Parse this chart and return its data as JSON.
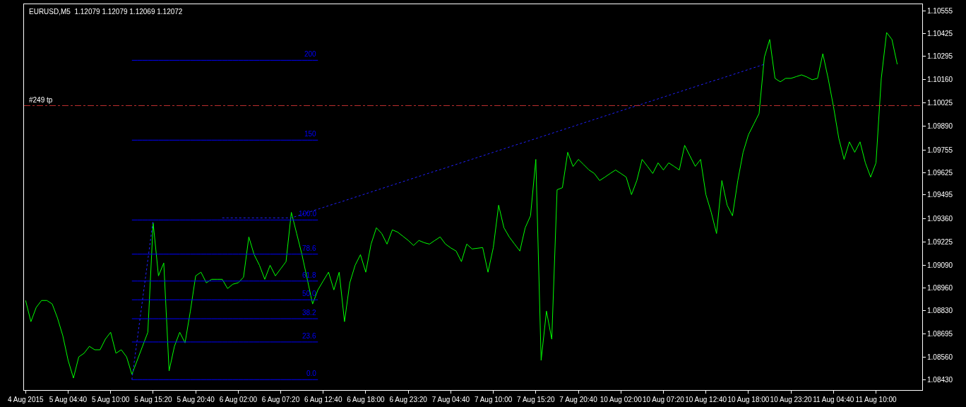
{
  "chart_data": {
    "type": "line",
    "title": "EURUSD,M5  1.12079 1.12079 1.12069 1.12072",
    "categories": [
      "4 Aug 2015",
      null,
      null,
      null,
      null,
      null,
      null,
      null,
      "5 Aug 04:40",
      null,
      null,
      null,
      null,
      null,
      null,
      null,
      "5 Aug 10:00",
      null,
      null,
      null,
      null,
      null,
      null,
      null,
      "5 Aug 15:20",
      null,
      null,
      null,
      null,
      null,
      null,
      null,
      "5 Aug 20:40",
      null,
      null,
      null,
      null,
      null,
      null,
      null,
      "6 Aug 02:00",
      null,
      null,
      null,
      null,
      null,
      null,
      null,
      "6 Aug 07:20",
      null,
      null,
      null,
      null,
      null,
      null,
      null,
      "6 Aug 12:40",
      null,
      null,
      null,
      null,
      null,
      null,
      null,
      "6 Aug 18:00",
      null,
      null,
      null,
      null,
      null,
      null,
      null,
      "6 Aug 23:20",
      null,
      null,
      null,
      null,
      null,
      null,
      null,
      "7 Aug 04:40",
      null,
      null,
      null,
      null,
      null,
      null,
      null,
      "7 Aug 10:00",
      null,
      null,
      null,
      null,
      null,
      null,
      null,
      "7 Aug 15:20",
      null,
      null,
      null,
      null,
      null,
      null,
      null,
      "7 Aug 20:40",
      null,
      null,
      null,
      null,
      null,
      null,
      null,
      "10 Aug 02:00",
      null,
      null,
      null,
      null,
      null,
      null,
      null,
      "10 Aug 07:20",
      null,
      null,
      null,
      null,
      null,
      null,
      null,
      "10 Aug 12:40",
      null,
      null,
      null,
      null,
      null,
      null,
      null,
      "10 Aug 18:00",
      null,
      null,
      null,
      null,
      null,
      null,
      null,
      "10 Aug 23:20",
      null,
      null,
      null,
      null,
      null,
      null,
      null,
      "11 Aug 04:40",
      null,
      null,
      null,
      null,
      null,
      null,
      null,
      "11 Aug 10:00",
      null,
      null,
      null,
      null
    ],
    "ylim": [
      1.08371,
      1.10594
    ],
    "yticks": [
      1.10555,
      1.10425,
      1.10295,
      {
        "value": 1.1016,
        "label": "1.10160"
      },
      1.10025,
      {
        "value": 1.0989,
        "label": "1.09890"
      },
      1.09755,
      1.09625,
      1.09495,
      {
        "value": 1.0936,
        "label": "1.09360"
      },
      1.09225,
      {
        "value": 1.0909,
        "label": "1.09090"
      },
      {
        "value": 1.0896,
        "label": "1.08960"
      },
      {
        "value": 1.0883,
        "label": "1.08830"
      },
      1.08695,
      {
        "value": 1.0856,
        "label": "1.08560"
      },
      {
        "value": 1.0843,
        "label": "1.08430"
      }
    ],
    "grid": false,
    "legend": false,
    "marker": "none",
    "ref_lines": [
      {
        "axis": "y",
        "value": 1.1001,
        "label": "#249 tp",
        "color": "#c03030",
        "line_style": "dashed"
      }
    ],
    "series": [
      {
        "color": "#00ff00",
        "line_style": "solid",
        "values": [
          1.08887,
          1.08765,
          1.08847,
          1.08887,
          1.08887,
          1.08867,
          1.08786,
          1.08684,
          1.08542,
          1.0844,
          1.08562,
          1.08583,
          1.08623,
          1.08603,
          1.08603,
          1.08664,
          1.08704,
          1.08583,
          1.08603,
          1.08562,
          1.08461,
          1.08542,
          1.08623,
          1.08704,
          1.09334,
          1.09029,
          1.09103,
          1.08481,
          1.08623,
          1.08704,
          1.08643,
          1.08826,
          1.09029,
          1.0905,
          1.08989,
          1.09009,
          1.09009,
          1.09009,
          1.08956,
          1.08981,
          1.08989,
          1.09021,
          1.09253,
          1.09151,
          1.0909,
          1.09009,
          1.0909,
          1.09029,
          1.0907,
          1.09111,
          1.09395,
          1.09273,
          1.09151,
          1.09009,
          1.08867,
          1.08948,
          1.09,
          1.0905,
          1.08948,
          1.0905,
          1.08765,
          1.08989,
          1.0909,
          1.09151,
          1.0905,
          1.09212,
          1.09306,
          1.09273,
          1.09212,
          1.09294,
          1.09281,
          1.09257,
          1.09233,
          1.09204,
          1.09233,
          1.0922,
          1.09212,
          1.09233,
          1.09253,
          1.09212,
          1.0919,
          1.09172,
          1.09111,
          1.09212,
          1.09184,
          1.09188,
          1.09192,
          1.0905,
          1.09192,
          1.09436,
          1.09306,
          1.09253,
          1.09212,
          1.09172,
          1.09306,
          1.09375,
          1.097,
          1.08542,
          1.08826,
          1.08664,
          1.09525,
          1.09537,
          1.09741,
          1.09659,
          1.097,
          1.0967,
          1.09639,
          1.09619,
          1.09578,
          1.09598,
          1.09619,
          1.09639,
          1.09619,
          1.09598,
          1.09497,
          1.09578,
          1.097,
          1.0966,
          1.09619,
          1.0968,
          1.09639,
          1.0968,
          1.0966,
          1.09639,
          1.09781,
          1.0972,
          1.0966,
          1.097,
          1.09497,
          1.09395,
          1.09273,
          1.09578,
          1.09436,
          1.09375,
          1.09578,
          1.09741,
          1.09842,
          1.09903,
          1.09964,
          1.10289,
          1.10391,
          1.10167,
          1.10147,
          1.10167,
          1.10167,
          1.10177,
          1.10187,
          1.10175,
          1.10159,
          1.10167,
          1.10309,
          1.10167,
          1.10005,
          1.09822,
          1.097,
          1.09801,
          1.09741,
          1.09801,
          1.0968,
          1.09598,
          1.0968,
          1.10167,
          1.10431,
          1.10391,
          1.10248
        ]
      },
      {
        "name": "0.0",
        "color": "#0000ff",
        "values": [
          null,
          null,
          null,
          null,
          null,
          null,
          null,
          null,
          null,
          null,
          null,
          null,
          null,
          null,
          null,
          null,
          null,
          null,
          null,
          null,
          1.08431,
          1.08431,
          1.08431,
          1.08431,
          1.08431,
          1.08431,
          1.08431,
          1.08431,
          1.08431,
          1.08431,
          1.08431,
          1.08431,
          1.08431,
          1.08431,
          1.08431,
          1.08431,
          1.08431,
          1.08431,
          1.08431,
          1.08431,
          1.08431,
          1.08431,
          1.08431,
          1.08431,
          1.08431,
          1.08431,
          1.08431,
          1.08431,
          1.08431,
          1.08431,
          1.08431,
          1.08431,
          1.08431,
          1.08431,
          1.08431,
          1.08431,
          null,
          null,
          null,
          null,
          null,
          null,
          null,
          null,
          null,
          null,
          null,
          null,
          null,
          null,
          null,
          null,
          null,
          null,
          null,
          null,
          null,
          null,
          null,
          null,
          null,
          null,
          null,
          null,
          null,
          null,
          null,
          null,
          null,
          null,
          null,
          null,
          null,
          null,
          null,
          null,
          null,
          null,
          null,
          null,
          null,
          null,
          null,
          null,
          null,
          null,
          null,
          null,
          null,
          null,
          null,
          null,
          null,
          null,
          null,
          null,
          null,
          null,
          null,
          null,
          null,
          null,
          null,
          null,
          null,
          null,
          null,
          null,
          null,
          null,
          null,
          null,
          null,
          null,
          null,
          null,
          null,
          null,
          null,
          null,
          null,
          null,
          null,
          null,
          null,
          null,
          null,
          null,
          null,
          null,
          null,
          null,
          null,
          null,
          null,
          null,
          null,
          null,
          null,
          null,
          null,
          null,
          null,
          null,
          null
        ]
      },
      {
        "name": "23.6",
        "color": "#0000ff",
        "values": [
          null,
          null,
          null,
          null,
          null,
          null,
          null,
          null,
          null,
          null,
          null,
          null,
          null,
          null,
          null,
          null,
          null,
          null,
          null,
          null,
          1.08648,
          1.08648,
          1.08648,
          1.08648,
          1.08648,
          1.08648,
          1.08648,
          1.08648,
          1.08648,
          1.08648,
          1.08648,
          1.08648,
          1.08648,
          1.08648,
          1.08648,
          1.08648,
          1.08648,
          1.08648,
          1.08648,
          1.08648,
          1.08648,
          1.08648,
          1.08648,
          1.08648,
          1.08648,
          1.08648,
          1.08648,
          1.08648,
          1.08648,
          1.08648,
          1.08648,
          1.08648,
          1.08648,
          1.08648,
          1.08648,
          1.08648,
          null,
          null,
          null,
          null,
          null,
          null,
          null,
          null,
          null,
          null,
          null,
          null,
          null,
          null,
          null,
          null,
          null,
          null,
          null,
          null,
          null,
          null,
          null,
          null,
          null,
          null,
          null,
          null,
          null,
          null,
          null,
          null,
          null,
          null,
          null,
          null,
          null,
          null,
          null,
          null,
          null,
          null,
          null,
          null,
          null,
          null,
          null,
          null,
          null,
          null,
          null,
          null,
          null,
          null,
          null,
          null,
          null,
          null,
          null,
          null,
          null,
          null,
          null,
          null,
          null,
          null,
          null,
          null,
          null,
          null,
          null,
          null,
          null,
          null,
          null,
          null,
          null,
          null,
          null,
          null,
          null,
          null,
          null,
          null,
          null,
          null,
          null,
          null,
          null,
          null,
          null,
          null,
          null,
          null,
          null,
          null,
          null,
          null,
          null,
          null,
          null,
          null,
          null,
          null,
          null,
          null,
          null,
          null,
          null
        ]
      },
      {
        "name": "38.2",
        "color": "#0000ff",
        "values": [
          null,
          null,
          null,
          null,
          null,
          null,
          null,
          null,
          null,
          null,
          null,
          null,
          null,
          null,
          null,
          null,
          null,
          null,
          null,
          null,
          1.08782,
          1.08782,
          1.08782,
          1.08782,
          1.08782,
          1.08782,
          1.08782,
          1.08782,
          1.08782,
          1.08782,
          1.08782,
          1.08782,
          1.08782,
          1.08782,
          1.08782,
          1.08782,
          1.08782,
          1.08782,
          1.08782,
          1.08782,
          1.08782,
          1.08782,
          1.08782,
          1.08782,
          1.08782,
          1.08782,
          1.08782,
          1.08782,
          1.08782,
          1.08782,
          1.08782,
          1.08782,
          1.08782,
          1.08782,
          1.08782,
          1.08782,
          null,
          null,
          null,
          null,
          null,
          null,
          null,
          null,
          null,
          null,
          null,
          null,
          null,
          null,
          null,
          null,
          null,
          null,
          null,
          null,
          null,
          null,
          null,
          null,
          null,
          null,
          null,
          null,
          null,
          null,
          null,
          null,
          null,
          null,
          null,
          null,
          null,
          null,
          null,
          null,
          null,
          null,
          null,
          null,
          null,
          null,
          null,
          null,
          null,
          null,
          null,
          null,
          null,
          null,
          null,
          null,
          null,
          null,
          null,
          null,
          null,
          null,
          null,
          null,
          null,
          null,
          null,
          null,
          null,
          null,
          null,
          null,
          null,
          null,
          null,
          null,
          null,
          null,
          null,
          null,
          null,
          null,
          null,
          null,
          null,
          null,
          null,
          null,
          null,
          null,
          null,
          null,
          null,
          null,
          null,
          null,
          null,
          null,
          null,
          null,
          null,
          null,
          null,
          null,
          null,
          null,
          null,
          null,
          null
        ]
      },
      {
        "name": "50.0",
        "color": "#0000ff",
        "values": [
          null,
          null,
          null,
          null,
          null,
          null,
          null,
          null,
          null,
          null,
          null,
          null,
          null,
          null,
          null,
          null,
          null,
          null,
          null,
          null,
          1.08891,
          1.08891,
          1.08891,
          1.08891,
          1.08891,
          1.08891,
          1.08891,
          1.08891,
          1.08891,
          1.08891,
          1.08891,
          1.08891,
          1.08891,
          1.08891,
          1.08891,
          1.08891,
          1.08891,
          1.08891,
          1.08891,
          1.08891,
          1.08891,
          1.08891,
          1.08891,
          1.08891,
          1.08891,
          1.08891,
          1.08891,
          1.08891,
          1.08891,
          1.08891,
          1.08891,
          1.08891,
          1.08891,
          1.08891,
          1.08891,
          1.08891,
          null,
          null,
          null,
          null,
          null,
          null,
          null,
          null,
          null,
          null,
          null,
          null,
          null,
          null,
          null,
          null,
          null,
          null,
          null,
          null,
          null,
          null,
          null,
          null,
          null,
          null,
          null,
          null,
          null,
          null,
          null,
          null,
          null,
          null,
          null,
          null,
          null,
          null,
          null,
          null,
          null,
          null,
          null,
          null,
          null,
          null,
          null,
          null,
          null,
          null,
          null,
          null,
          null,
          null,
          null,
          null,
          null,
          null,
          null,
          null,
          null,
          null,
          null,
          null,
          null,
          null,
          null,
          null,
          null,
          null,
          null,
          null,
          null,
          null,
          null,
          null,
          null,
          null,
          null,
          null,
          null,
          null,
          null,
          null,
          null,
          null,
          null,
          null,
          null,
          null,
          null,
          null,
          null,
          null,
          null,
          null,
          null,
          null,
          null,
          null,
          null,
          null,
          null,
          null,
          null,
          null,
          null,
          null,
          null
        ]
      },
      {
        "name": "61.8",
        "color": "#0000ff",
        "values": [
          null,
          null,
          null,
          null,
          null,
          null,
          null,
          null,
          null,
          null,
          null,
          null,
          null,
          null,
          null,
          null,
          null,
          null,
          null,
          null,
          1.08999,
          1.08999,
          1.08999,
          1.08999,
          1.08999,
          1.08999,
          1.08999,
          1.08999,
          1.08999,
          1.08999,
          1.08999,
          1.08999,
          1.08999,
          1.08999,
          1.08999,
          1.08999,
          1.08999,
          1.08999,
          1.08999,
          1.08999,
          1.08999,
          1.08999,
          1.08999,
          1.08999,
          1.08999,
          1.08999,
          1.08999,
          1.08999,
          1.08999,
          1.08999,
          1.08999,
          1.08999,
          1.08999,
          1.08999,
          1.08999,
          1.08999,
          null,
          null,
          null,
          null,
          null,
          null,
          null,
          null,
          null,
          null,
          null,
          null,
          null,
          null,
          null,
          null,
          null,
          null,
          null,
          null,
          null,
          null,
          null,
          null,
          null,
          null,
          null,
          null,
          null,
          null,
          null,
          null,
          null,
          null,
          null,
          null,
          null,
          null,
          null,
          null,
          null,
          null,
          null,
          null,
          null,
          null,
          null,
          null,
          null,
          null,
          null,
          null,
          null,
          null,
          null,
          null,
          null,
          null,
          null,
          null,
          null,
          null,
          null,
          null,
          null,
          null,
          null,
          null,
          null,
          null,
          null,
          null,
          null,
          null,
          null,
          null,
          null,
          null,
          null,
          null,
          null,
          null,
          null,
          null,
          null,
          null,
          null,
          null,
          null,
          null,
          null,
          null,
          null,
          null,
          null,
          null,
          null,
          null,
          null,
          null,
          null,
          null,
          null,
          null,
          null,
          null,
          null,
          null,
          null
        ]
      },
      {
        "name": "78.6",
        "color": "#0000ff",
        "values": [
          null,
          null,
          null,
          null,
          null,
          null,
          null,
          null,
          null,
          null,
          null,
          null,
          null,
          null,
          null,
          null,
          null,
          null,
          null,
          null,
          1.09154,
          1.09154,
          1.09154,
          1.09154,
          1.09154,
          1.09154,
          1.09154,
          1.09154,
          1.09154,
          1.09154,
          1.09154,
          1.09154,
          1.09154,
          1.09154,
          1.09154,
          1.09154,
          1.09154,
          1.09154,
          1.09154,
          1.09154,
          1.09154,
          1.09154,
          1.09154,
          1.09154,
          1.09154,
          1.09154,
          1.09154,
          1.09154,
          1.09154,
          1.09154,
          1.09154,
          1.09154,
          1.09154,
          1.09154,
          1.09154,
          1.09154,
          null,
          null,
          null,
          null,
          null,
          null,
          null,
          null,
          null,
          null,
          null,
          null,
          null,
          null,
          null,
          null,
          null,
          null,
          null,
          null,
          null,
          null,
          null,
          null,
          null,
          null,
          null,
          null,
          null,
          null,
          null,
          null,
          null,
          null,
          null,
          null,
          null,
          null,
          null,
          null,
          null,
          null,
          null,
          null,
          null,
          null,
          null,
          null,
          null,
          null,
          null,
          null,
          null,
          null,
          null,
          null,
          null,
          null,
          null,
          null,
          null,
          null,
          null,
          null,
          null,
          null,
          null,
          null,
          null,
          null,
          null,
          null,
          null,
          null,
          null,
          null,
          null,
          null,
          null,
          null,
          null,
          null,
          null,
          null,
          null,
          null,
          null,
          null,
          null,
          null,
          null,
          null,
          null,
          null,
          null,
          null,
          null,
          null,
          null,
          null,
          null,
          null,
          null,
          null,
          null,
          null,
          null,
          null,
          null
        ]
      },
      {
        "name": "100.0",
        "color": "#0000ff",
        "values": [
          null,
          null,
          null,
          null,
          null,
          null,
          null,
          null,
          null,
          null,
          null,
          null,
          null,
          null,
          null,
          null,
          null,
          null,
          null,
          null,
          1.09351,
          1.09351,
          1.09351,
          1.09351,
          1.09351,
          1.09351,
          1.09351,
          1.09351,
          1.09351,
          1.09351,
          1.09351,
          1.09351,
          1.09351,
          1.09351,
          1.09351,
          1.09351,
          1.09351,
          1.09351,
          1.09351,
          1.09351,
          1.09351,
          1.09351,
          1.09351,
          1.09351,
          1.09351,
          1.09351,
          1.09351,
          1.09351,
          1.09351,
          1.09351,
          1.09351,
          1.09351,
          1.09351,
          1.09351,
          1.09351,
          1.09351,
          null,
          null,
          null,
          null,
          null,
          null,
          null,
          null,
          null,
          null,
          null,
          null,
          null,
          null,
          null,
          null,
          null,
          null,
          null,
          null,
          null,
          null,
          null,
          null,
          null,
          null,
          null,
          null,
          null,
          null,
          null,
          null,
          null,
          null,
          null,
          null,
          null,
          null,
          null,
          null,
          null,
          null,
          null,
          null,
          null,
          null,
          null,
          null,
          null,
          null,
          null,
          null,
          null,
          null,
          null,
          null,
          null,
          null,
          null,
          null,
          null,
          null,
          null,
          null,
          null,
          null,
          null,
          null,
          null,
          null,
          null,
          null,
          null,
          null,
          null,
          null,
          null,
          null,
          null,
          null,
          null,
          null,
          null,
          null,
          null,
          null,
          null,
          null,
          null,
          null,
          null,
          null,
          null,
          null,
          null,
          null,
          null,
          null,
          null,
          null,
          null,
          null,
          null,
          null,
          null,
          null,
          null,
          null,
          null
        ]
      },
      {
        "name": "150",
        "color": "#0000ff",
        "values": [
          null,
          null,
          null,
          null,
          null,
          null,
          null,
          null,
          null,
          null,
          null,
          null,
          null,
          null,
          null,
          null,
          null,
          null,
          null,
          null,
          1.09811,
          1.09811,
          1.09811,
          1.09811,
          1.09811,
          1.09811,
          1.09811,
          1.09811,
          1.09811,
          1.09811,
          1.09811,
          1.09811,
          1.09811,
          1.09811,
          1.09811,
          1.09811,
          1.09811,
          1.09811,
          1.09811,
          1.09811,
          1.09811,
          1.09811,
          1.09811,
          1.09811,
          1.09811,
          1.09811,
          1.09811,
          1.09811,
          1.09811,
          1.09811,
          1.09811,
          1.09811,
          1.09811,
          1.09811,
          1.09811,
          1.09811,
          null,
          null,
          null,
          null,
          null,
          null,
          null,
          null,
          null,
          null,
          null,
          null,
          null,
          null,
          null,
          null,
          null,
          null,
          null,
          null,
          null,
          null,
          null,
          null,
          null,
          null,
          null,
          null,
          null,
          null,
          null,
          null,
          null,
          null,
          null,
          null,
          null,
          null,
          null,
          null,
          null,
          null,
          null,
          null,
          null,
          null,
          null,
          null,
          null,
          null,
          null,
          null,
          null,
          null,
          null,
          null,
          null,
          null,
          null,
          null,
          null,
          null,
          null,
          null,
          null,
          null,
          null,
          null,
          null,
          null,
          null,
          null,
          null,
          null,
          null,
          null,
          null,
          null,
          null,
          null,
          null,
          null,
          null,
          null,
          null,
          null,
          null,
          null,
          null,
          null,
          null,
          null,
          null,
          null,
          null,
          null,
          null,
          null,
          null,
          null,
          null,
          null,
          null,
          null,
          null,
          null,
          null,
          null,
          null
        ]
      },
      {
        "name": "200",
        "color": "#0000ff",
        "values": [
          null,
          null,
          null,
          null,
          null,
          null,
          null,
          null,
          null,
          null,
          null,
          null,
          null,
          null,
          null,
          null,
          null,
          null,
          null,
          null,
          1.10271,
          1.10271,
          1.10271,
          1.10271,
          1.10271,
          1.10271,
          1.10271,
          1.10271,
          1.10271,
          1.10271,
          1.10271,
          1.10271,
          1.10271,
          1.10271,
          1.10271,
          1.10271,
          1.10271,
          1.10271,
          1.10271,
          1.10271,
          1.10271,
          1.10271,
          1.10271,
          1.10271,
          1.10271,
          1.10271,
          1.10271,
          1.10271,
          1.10271,
          1.10271,
          1.10271,
          1.10271,
          1.10271,
          1.10271,
          1.10271,
          1.10271,
          null,
          null,
          null,
          null,
          null,
          null,
          null,
          null,
          null,
          null,
          null,
          null,
          null,
          null,
          null,
          null,
          null,
          null,
          null,
          null,
          null,
          null,
          null,
          null,
          null,
          null,
          null,
          null,
          null,
          null,
          null,
          null,
          null,
          null,
          null,
          null,
          null,
          null,
          null,
          null,
          null,
          null,
          null,
          null,
          null,
          null,
          null,
          null,
          null,
          null,
          null,
          null,
          null,
          null,
          null,
          null,
          null,
          null,
          null,
          null,
          null,
          null,
          null,
          null,
          null,
          null,
          null,
          null,
          null,
          null,
          null,
          null,
          null,
          null,
          null,
          null,
          null,
          null,
          null,
          null,
          null,
          null,
          null,
          null,
          null,
          null,
          null,
          null,
          null,
          null,
          null,
          null,
          null,
          null,
          null,
          null,
          null,
          null,
          null,
          null,
          null,
          null,
          null,
          null,
          null,
          null,
          null,
          null,
          null
        ]
      },
      {
        "color": "#2020ff",
        "line_style": "dotted",
        "values": [
          null,
          null,
          null,
          null,
          null,
          null,
          null,
          null,
          null,
          null,
          null,
          null,
          null,
          null,
          null,
          null,
          null,
          null,
          null,
          null,
          1.08431,
          1.08661,
          1.08891,
          1.09121,
          1.09351,
          null,
          null,
          null,
          null,
          null,
          null,
          null,
          null,
          null,
          null,
          null,
          null,
          null,
          null,
          null,
          null,
          null,
          null,
          null,
          null,
          null,
          null,
          null,
          null,
          null,
          null,
          null,
          null,
          null,
          null,
          null,
          null,
          null,
          null,
          null,
          null,
          null,
          null,
          null,
          null,
          null,
          null,
          null,
          null,
          null,
          null,
          null,
          null,
          null,
          null,
          null,
          null,
          null,
          null,
          null,
          null,
          null,
          null,
          null,
          null,
          null,
          null,
          null,
          null,
          null,
          null,
          null,
          null,
          null,
          null,
          null,
          null,
          null,
          null,
          null,
          null,
          null,
          null,
          null,
          null,
          null,
          null,
          null,
          null,
          null,
          null,
          null,
          null,
          null,
          null,
          null,
          null,
          null,
          null,
          null,
          null,
          null,
          null,
          null,
          null,
          null,
          null,
          null,
          null,
          null,
          null,
          null,
          null,
          null,
          null,
          null,
          null,
          null,
          null,
          null,
          null,
          null,
          null,
          null,
          null,
          null,
          null,
          null,
          null,
          null,
          null,
          null,
          null,
          null,
          null,
          null,
          null,
          null,
          null,
          null,
          null,
          null,
          null,
          null,
          null
        ]
      },
      {
        "color": "#2020ff",
        "line_style": "dotted",
        "values": [
          null,
          null,
          null,
          null,
          null,
          null,
          null,
          null,
          null,
          null,
          null,
          null,
          null,
          null,
          null,
          null,
          null,
          null,
          null,
          null,
          null,
          null,
          null,
          null,
          null,
          null,
          null,
          null,
          null,
          null,
          null,
          null,
          null,
          null,
          null,
          null,
          null,
          1.09363,
          1.09363,
          1.09363,
          1.09363,
          1.09363,
          1.09363,
          1.09363,
          1.09363,
          1.09363,
          1.09363,
          1.09363,
          1.09363,
          1.09363,
          1.09363,
          1.09373,
          1.09383,
          1.09393,
          1.09403,
          1.09413,
          1.09423,
          1.09433,
          1.09443,
          1.09452,
          1.09462,
          1.09472,
          1.09482,
          1.09492,
          1.09502,
          1.09512,
          1.09522,
          1.09532,
          1.09542,
          1.09552,
          1.09562,
          1.09572,
          1.09582,
          1.09592,
          1.09602,
          1.09612,
          1.09622,
          1.09632,
          1.09641,
          1.09651,
          1.09661,
          1.09671,
          1.09681,
          1.09691,
          1.09701,
          1.09711,
          1.09721,
          1.09731,
          1.09741,
          1.09751,
          1.09761,
          1.09771,
          1.09781,
          1.09791,
          1.098,
          1.0981,
          1.0982,
          1.0983,
          1.0984,
          1.0985,
          1.0986,
          1.0987,
          1.0988,
          1.0989,
          1.099,
          1.0991,
          1.0992,
          1.0993,
          1.0994,
          1.0995,
          1.0996,
          1.0997,
          1.0998,
          1.0999,
          1.1,
          1.10009,
          1.10019,
          1.10029,
          1.10039,
          1.10049,
          1.10059,
          1.10069,
          1.10079,
          1.10089,
          1.10099,
          1.10109,
          1.10119,
          1.10129,
          1.10139,
          1.10149,
          1.10158,
          1.10168,
          1.10178,
          1.10188,
          1.10198,
          1.10208,
          1.10218,
          1.10228,
          1.10238,
          1.10248,
          null,
          null,
          null,
          null,
          null,
          null,
          null,
          null,
          null,
          null,
          null,
          null,
          null,
          null,
          null,
          null,
          null,
          null,
          null,
          null,
          null,
          null,
          null,
          null,
          null
        ]
      }
    ]
  }
}
